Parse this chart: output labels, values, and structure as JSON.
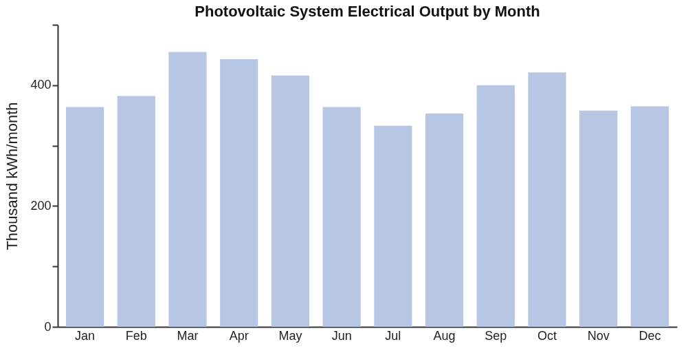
{
  "chart_data": {
    "type": "bar",
    "title": "Photovoltaic System Electrical Output by Month",
    "ylabel": "Thousand kWh/month",
    "categories": [
      "Jan",
      "Feb",
      "Mar",
      "Apr",
      "May",
      "Jun",
      "Jul",
      "Aug",
      "Sep",
      "Oct",
      "Nov",
      "Dec"
    ],
    "values": [
      364,
      382,
      455,
      443,
      416,
      364,
      333,
      353,
      400,
      421,
      358,
      365
    ],
    "color": "#b7c7e3",
    "ylim": [
      0,
      500
    ],
    "yticks": [
      0,
      {
        "value": 100,
        "label": null
      },
      200,
      {
        "value": 300,
        "label": null
      },
      400,
      {
        "value": 500,
        "label": null
      }
    ],
    "grid": false
  }
}
